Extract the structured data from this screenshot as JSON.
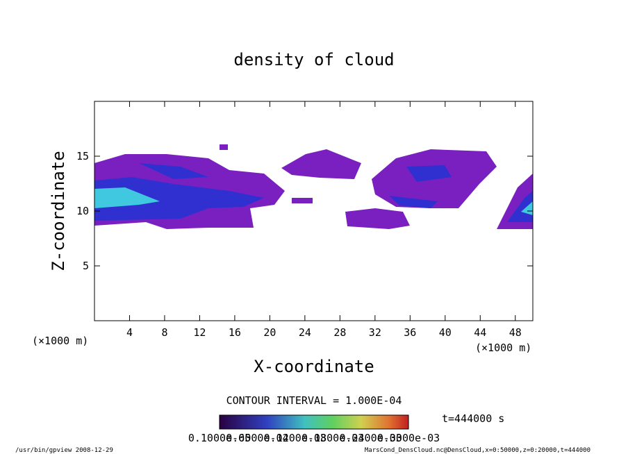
{
  "chart_data": {
    "type": "contour",
    "title": "density of cloud",
    "xlabel": "X-coordinate",
    "ylabel": "Z-coordinate",
    "x_unit_left": "(×1000 m)",
    "x_unit_right": "(×1000 m)",
    "xlim": [
      0,
      50
    ],
    "xticks": [
      4,
      8,
      12,
      16,
      20,
      24,
      28,
      32,
      36,
      40,
      44,
      48
    ],
    "ylim": [
      0,
      20
    ],
    "yticks": [
      5,
      10,
      15
    ],
    "contour_interval": "CONTOUR INTERVAL = 1.000E-04",
    "time": "t=444000 s",
    "colorbar_labels": [
      "0.1000e-05",
      "0.6000e-04",
      "0.1200e-03",
      "0.1800e-03",
      "0.2400e-03",
      "0.3000e-03"
    ],
    "footer_left": "/usr/bin/gpview  2008-12-29",
    "footer_right": "MarsCond_DensCloud.nc@DensCloud,x=0:50000,z=0:20000,t=444000"
  }
}
